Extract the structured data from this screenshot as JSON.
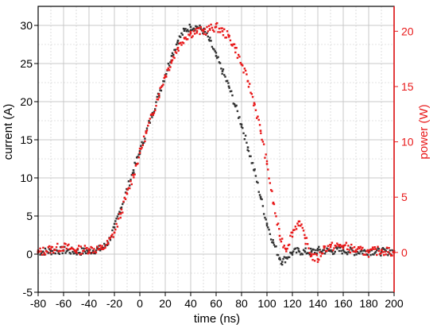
{
  "chart_data": {
    "type": "scatter",
    "title": "",
    "xlabel": "time (ns)",
    "ylabel_left": "current (A)",
    "ylabel_right": "power (W)",
    "xlim": [
      -80,
      200
    ],
    "ylim_left": [
      -5,
      32.5
    ],
    "ylim_right": [
      -3.6,
      22.25
    ],
    "x_ticks": [
      -80,
      -60,
      -40,
      -20,
      0,
      20,
      40,
      60,
      80,
      100,
      120,
      140,
      160,
      180,
      200
    ],
    "y_left_ticks": [
      -5,
      0,
      5,
      10,
      15,
      20,
      25,
      30
    ],
    "y_right_ticks": [
      0,
      5,
      10,
      15,
      20
    ],
    "grid": true,
    "colors": {
      "current": "#333333",
      "power": "#e8191a",
      "grid": "#c8c8c8"
    },
    "series": [
      {
        "axis": "left",
        "x": [
          -80,
          -70,
          -60,
          -50,
          -40,
          -30,
          -25,
          -20,
          -15,
          -10,
          -5,
          0,
          5,
          10,
          15,
          20,
          25,
          30,
          35,
          40,
          45,
          50,
          55,
          60,
          65,
          70,
          75,
          80,
          85,
          90,
          95,
          100,
          105,
          110,
          112,
          115,
          120,
          125,
          130,
          135,
          140,
          150,
          160,
          170,
          180,
          190,
          200
        ],
        "values": [
          0.3,
          0.4,
          0.5,
          0.3,
          0.4,
          0.7,
          1.5,
          3.5,
          6,
          8.5,
          11,
          13.5,
          16,
          18.5,
          21,
          23.5,
          26,
          28,
          29.3,
          29.8,
          29.8,
          29.3,
          28,
          26,
          24,
          22,
          19.5,
          17,
          14,
          11,
          7.5,
          4,
          1.5,
          -0.5,
          -1,
          -0.5,
          0.2,
          0.4,
          0.3,
          0.3,
          0.5,
          0.4,
          0.5,
          0.3,
          0.4,
          0.3,
          0.4
        ]
      },
      {
        "axis": "right",
        "x": [
          -80,
          -70,
          -60,
          -50,
          -40,
          -30,
          -25,
          -20,
          -15,
          -10,
          -5,
          0,
          5,
          10,
          15,
          20,
          25,
          30,
          35,
          40,
          45,
          50,
          55,
          60,
          65,
          70,
          75,
          80,
          85,
          90,
          95,
          100,
          105,
          110,
          115,
          120,
          125,
          130,
          135,
          140,
          145,
          150,
          160,
          170,
          180,
          190,
          200
        ],
        "values": [
          0,
          0.3,
          0.5,
          0.2,
          0.3,
          0.3,
          0.8,
          1.8,
          3.5,
          5.3,
          7,
          9,
          10.8,
          12.5,
          14.3,
          16,
          17.3,
          18.5,
          19.4,
          19.8,
          20,
          20,
          20.2,
          20.4,
          20,
          19.5,
          18.5,
          17,
          15.5,
          13.5,
          11,
          8,
          4.5,
          1.5,
          0.3,
          1.8,
          2.8,
          1.3,
          -0.3,
          -0.6,
          0.4,
          0.5,
          0.6,
          0.2,
          0,
          0.2,
          0
        ]
      }
    ]
  }
}
